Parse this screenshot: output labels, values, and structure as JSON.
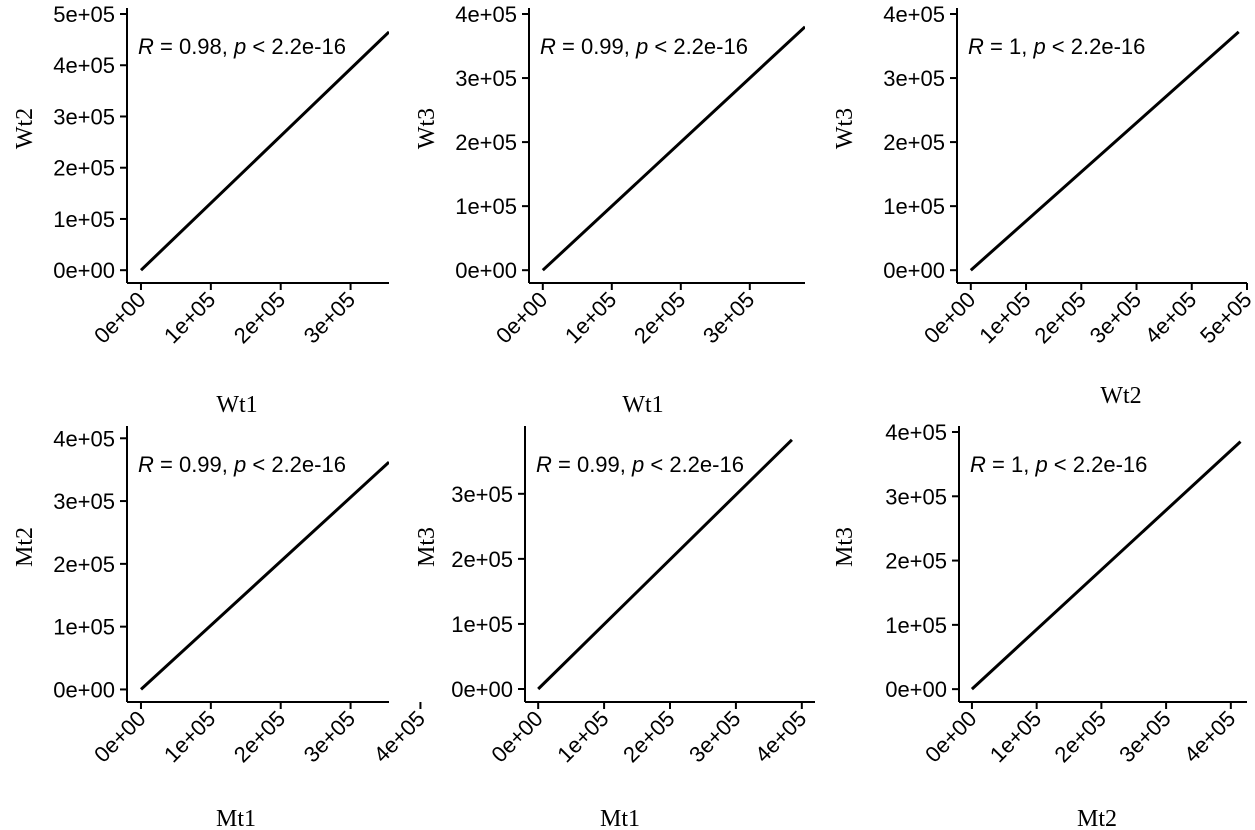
{
  "chart_data": [
    {
      "type": "scatter",
      "xlabel": "Wt1",
      "ylabel": "Wt2",
      "annotation": {
        "r_symbol": "R",
        "r_value": " = 0.98, ",
        "p_symbol": "p",
        "p_text": " < 2.2e-16"
      },
      "xlim": [
        -20000,
        355000
      ],
      "ylim": [
        -25000,
        500000
      ],
      "x_ticks": [
        0,
        100000,
        200000,
        300000
      ],
      "x_tick_labels": [
        "0e+00",
        "1e+05",
        "2e+05",
        "3e+05"
      ],
      "y_ticks": [
        0,
        100000,
        200000,
        300000,
        400000,
        500000
      ],
      "y_tick_labels": [
        "0e+00",
        "1e+05",
        "2e+05",
        "3e+05",
        "4e+05",
        "5e+05"
      ],
      "series": [
        {
          "x": [
            0,
            355000
          ],
          "y": [
            0,
            465000
          ]
        }
      ]
    },
    {
      "type": "scatter",
      "xlabel": "Wt1",
      "ylabel": "Wt3",
      "annotation": {
        "r_symbol": "R",
        "r_value": " = 0.99, ",
        "p_symbol": "p",
        "p_text": " < 2.2e-16"
      },
      "xlim": [
        -20000,
        380000
      ],
      "ylim": [
        -20000,
        400000
      ],
      "x_ticks": [
        0,
        100000,
        200000,
        300000
      ],
      "x_tick_labels": [
        "0e+00",
        "1e+05",
        "2e+05",
        "3e+05"
      ],
      "y_ticks": [
        0,
        100000,
        200000,
        300000,
        400000
      ],
      "y_tick_labels": [
        "0e+00",
        "1e+05",
        "2e+05",
        "3e+05",
        "4e+05"
      ],
      "series": [
        {
          "x": [
            0,
            380000
          ],
          "y": [
            0,
            380000
          ]
        }
      ]
    },
    {
      "type": "scatter",
      "xlabel": "Wt2",
      "ylabel": "Wt3",
      "annotation": {
        "r_symbol": "R",
        "r_value": " = 1, ",
        "p_symbol": "p",
        "p_text": " < 2.2e-16"
      },
      "xlim": [
        -25000,
        500000
      ],
      "ylim": [
        -20000,
        400000
      ],
      "x_ticks": [
        0,
        100000,
        200000,
        300000,
        400000,
        500000
      ],
      "x_tick_labels": [
        "0e+00",
        "1e+05",
        "2e+05",
        "3e+05",
        "4e+05",
        "5e+05"
      ],
      "y_ticks": [
        0,
        100000,
        200000,
        300000,
        400000
      ],
      "y_tick_labels": [
        "0e+00",
        "1e+05",
        "2e+05",
        "3e+05",
        "4e+05"
      ],
      "series": [
        {
          "x": [
            0,
            485000
          ],
          "y": [
            0,
            372000
          ]
        }
      ]
    },
    {
      "type": "scatter",
      "xlabel": "Mt1",
      "ylabel": "Mt2",
      "annotation": {
        "r_symbol": "R",
        "r_value": " = 0.99, ",
        "p_symbol": "p",
        "p_text": " < 2.2e-16"
      },
      "xlim": [
        -20000,
        355000
      ],
      "ylim": [
        -20000,
        410000
      ],
      "x_ticks": [
        0,
        100000,
        200000,
        300000,
        400000
      ],
      "x_tick_labels": [
        "0e+00",
        "1e+05",
        "2e+05",
        "3e+05",
        "4e+05"
      ],
      "y_ticks": [
        0,
        100000,
        200000,
        300000,
        400000
      ],
      "y_tick_labels": [
        "0e+00",
        "1e+05",
        "2e+05",
        "3e+05",
        "4e+05"
      ],
      "series": [
        {
          "x": [
            0,
            355000
          ],
          "y": [
            0,
            362000
          ]
        }
      ]
    },
    {
      "type": "scatter",
      "xlabel": "Mt1",
      "ylabel": "Mt3",
      "annotation": {
        "r_symbol": "R",
        "r_value": " = 0.99, ",
        "p_symbol": "p",
        "p_text": " < 2.2e-16"
      },
      "xlim": [
        -20000,
        420000
      ],
      "ylim": [
        -20000,
        395000
      ],
      "x_ticks": [
        0,
        100000,
        200000,
        300000,
        400000
      ],
      "x_tick_labels": [
        "0e+00",
        "1e+05",
        "2e+05",
        "3e+05",
        "4e+05"
      ],
      "y_ticks": [
        0,
        100000,
        200000,
        300000
      ],
      "y_tick_labels": [
        "0e+00",
        "1e+05",
        "2e+05",
        "3e+05"
      ],
      "series": [
        {
          "x": [
            0,
            385000
          ],
          "y": [
            0,
            383000
          ]
        }
      ]
    },
    {
      "type": "scatter",
      "xlabel": "Mt2",
      "ylabel": "Mt3",
      "annotation": {
        "r_symbol": "R",
        "r_value": " = 1, ",
        "p_symbol": "p",
        "p_text": " < 2.2e-16"
      },
      "xlim": [
        -20000,
        425000
      ],
      "ylim": [
        -20000,
        400000
      ],
      "x_ticks": [
        0,
        100000,
        200000,
        300000,
        400000
      ],
      "x_tick_labels": [
        "0e+00",
        "1e+05",
        "2e+05",
        "3e+05",
        "4e+05"
      ],
      "y_ticks": [
        0,
        100000,
        200000,
        300000,
        400000
      ],
      "y_tick_labels": [
        "0e+00",
        "1e+05",
        "2e+05",
        "3e+05",
        "4e+05"
      ],
      "series": [
        {
          "x": [
            0,
            415000
          ],
          "y": [
            0,
            385000
          ]
        }
      ]
    }
  ]
}
